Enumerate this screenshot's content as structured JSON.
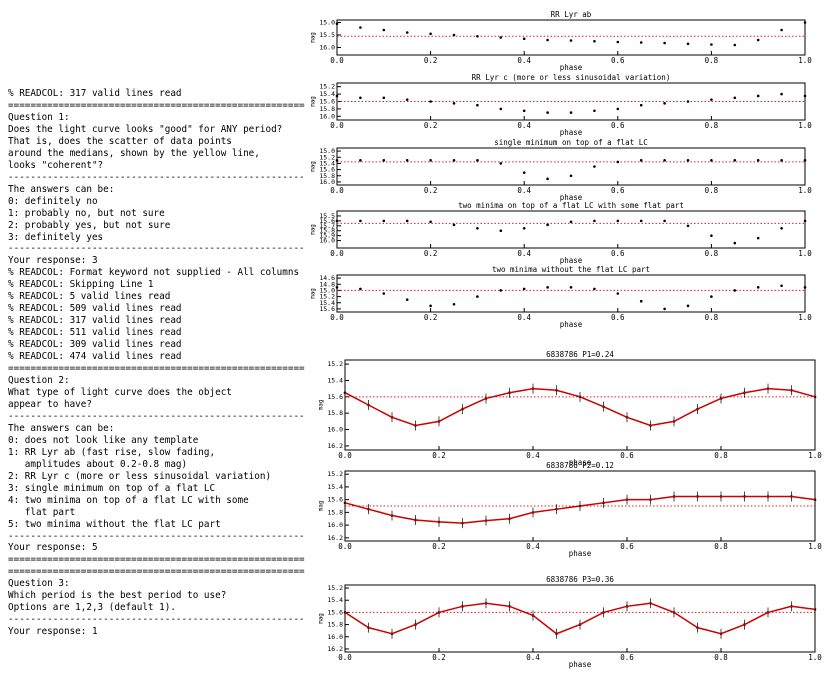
{
  "terminal": {
    "lines": [
      "% READCOL: 317 valid lines read",
      "=====================================================",
      "Question 1:",
      "Does the light curve looks \"good\" for ANY period?",
      "That is, does the scatter of data points",
      "around the medians, shown by the yellow line,",
      "looks \"coherent\"?",
      "-----------------------------------------------------",
      "The answers can be:",
      "0: definitely no",
      "1: probably no, but not sure",
      "2: probably yes, but not sure",
      "3: definitely yes",
      "-----------------------------------------------------",
      "Your response: 3",
      "% READCOL: Format keyword not supplied - All columns",
      "% READCOL: Skipping Line 1",
      "% READCOL: 5 valid lines read",
      "% READCOL: 509 valid lines read",
      "% READCOL: 317 valid lines read",
      "% READCOL: 511 valid lines read",
      "% READCOL: 309 valid lines read",
      "% READCOL: 474 valid lines read",
      "=====================================================",
      "Question 2:",
      "What type of light curve does the object",
      "appear to have?",
      "-----------------------------------------------------",
      "The answers can be:",
      "0: does not look like any template",
      "1: RR Lyr ab (fast rise, slow fading,",
      "   amplitudes about 0.2-0.8 mag)",
      "2: RR Lyr c (more or less sinusoidal variation)",
      "3: single minimum on top of a flat LC",
      "4: two minima on top of a flat LC with some",
      "   flat part",
      "5: two minima without the flat LC part",
      "-----------------------------------------------------",
      "Your response: 5",
      "=====================================================",
      "=====================================================",
      "Question 3:",
      "Which period is the best period to use?",
      "Options are 1,2,3 (default 1).",
      "-----------------------------------------------------",
      "Your response: 1"
    ]
  },
  "plots": [
    {
      "type": "scatter",
      "title": "RR Lyr ab",
      "xlabel": "phase",
      "ylabel": "mag",
      "color": "#000000",
      "median_color": "#e02020",
      "median": 15.55,
      "x": [
        0,
        0.05,
        0.1,
        0.15,
        0.2,
        0.25,
        0.3,
        0.35,
        0.4,
        0.45,
        0.5,
        0.55,
        0.6,
        0.65,
        0.7,
        0.75,
        0.8,
        0.85,
        0.9,
        0.95,
        1
      ],
      "values": [
        15.05,
        15.2,
        15.3,
        15.4,
        15.45,
        15.5,
        15.55,
        15.6,
        15.65,
        15.7,
        15.72,
        15.75,
        15.78,
        15.8,
        15.82,
        15.85,
        15.88,
        15.9,
        15.7,
        15.3,
        15.0
      ],
      "xlim": [
        0,
        1
      ],
      "xticks": [
        {
          "value": 0,
          "label": "0.0"
        },
        0.2,
        0.4,
        0.6,
        0.8,
        {
          "value": 1,
          "label": "1.0"
        }
      ],
      "ylim": [
        14.9,
        16.3
      ],
      "yticks": [
        {
          "value": 15,
          "label": "15.0"
        },
        15.5,
        {
          "value": 16,
          "label": "16.0"
        }
      ]
    },
    {
      "type": "scatter",
      "title": "RR Lyr c (more or less sinusoidal variation)",
      "xlabel": "phase",
      "ylabel": "mag",
      "color": "#000000",
      "median_color": "#e02020",
      "median": 15.6,
      "x": [
        0,
        0.05,
        0.1,
        0.15,
        0.2,
        0.25,
        0.3,
        0.35,
        0.4,
        0.45,
        0.5,
        0.55,
        0.6,
        0.65,
        0.7,
        0.75,
        0.8,
        0.85,
        0.9,
        0.95,
        1
      ],
      "values": [
        15.45,
        15.5,
        15.5,
        15.55,
        15.6,
        15.65,
        15.7,
        15.8,
        15.85,
        15.9,
        15.9,
        15.85,
        15.8,
        15.7,
        15.65,
        15.6,
        15.55,
        15.5,
        15.45,
        15.4,
        15.45
      ],
      "xlim": [
        0,
        1
      ],
      "xticks": [
        {
          "value": 0,
          "label": "0.0"
        },
        0.2,
        0.4,
        0.6,
        0.8,
        {
          "value": 1,
          "label": "1.0"
        }
      ],
      "ylim": [
        15.1,
        16.1
      ],
      "yticks": [
        15.2,
        15.4,
        15.6,
        15.8,
        {
          "value": 16,
          "label": "16.0"
        }
      ]
    },
    {
      "type": "scatter",
      "title": "single minimum on top of a flat LC",
      "xlabel": "phase",
      "ylabel": "mag",
      "color": "#000000",
      "median_color": "#e02020",
      "median": 15.35,
      "x": [
        0,
        0.05,
        0.1,
        0.15,
        0.2,
        0.25,
        0.3,
        0.35,
        0.4,
        0.45,
        0.5,
        0.55,
        0.6,
        0.65,
        0.7,
        0.75,
        0.8,
        0.85,
        0.9,
        0.95,
        1
      ],
      "values": [
        15.3,
        15.3,
        15.3,
        15.3,
        15.3,
        15.3,
        15.3,
        15.4,
        15.7,
        15.9,
        15.8,
        15.5,
        15.35,
        15.3,
        15.3,
        15.3,
        15.3,
        15.3,
        15.3,
        15.3,
        15.3
      ],
      "xlim": [
        0,
        1
      ],
      "xticks": [
        {
          "value": 0,
          "label": "0.0"
        },
        0.2,
        0.4,
        0.6,
        0.8,
        {
          "value": 1,
          "label": "1.0"
        }
      ],
      "ylim": [
        14.9,
        16.1
      ],
      "yticks": [
        {
          "value": 15,
          "label": "15.0"
        },
        15.2,
        15.4,
        15.6,
        15.8,
        {
          "value": 16,
          "label": "16.0"
        }
      ]
    },
    {
      "type": "scatter",
      "title": "two minima on top of a flat LC with some flat part",
      "xlabel": "phase",
      "ylabel": "mag",
      "color": "#000000",
      "median_color": "#e02020",
      "median": 15.65,
      "x": [
        0,
        0.05,
        0.1,
        0.15,
        0.2,
        0.25,
        0.3,
        0.35,
        0.4,
        0.45,
        0.5,
        0.55,
        0.6,
        0.65,
        0.7,
        0.75,
        0.8,
        0.85,
        0.9,
        0.95,
        1
      ],
      "values": [
        15.6,
        15.6,
        15.6,
        15.6,
        15.62,
        15.68,
        15.75,
        15.8,
        15.75,
        15.68,
        15.62,
        15.6,
        15.6,
        15.6,
        15.6,
        15.7,
        15.9,
        16.05,
        15.95,
        15.75,
        15.6
      ],
      "xlim": [
        0,
        1
      ],
      "xticks": [
        {
          "value": 0,
          "label": "0.0"
        },
        0.2,
        0.4,
        0.6,
        0.8,
        {
          "value": 1,
          "label": "1.0"
        }
      ],
      "ylim": [
        15.4,
        16.15
      ],
      "yticks": [
        15.5,
        15.6,
        15.7,
        15.8,
        15.9,
        {
          "value": 16,
          "label": "16.0"
        }
      ]
    },
    {
      "type": "scatter",
      "title": "two minima without the flat LC part",
      "xlabel": "phase",
      "ylabel": "mag",
      "color": "#000000",
      "median_color": "#e02020",
      "median": 15.0,
      "x": [
        0,
        0.05,
        0.1,
        0.15,
        0.2,
        0.25,
        0.3,
        0.35,
        0.4,
        0.45,
        0.5,
        0.55,
        0.6,
        0.65,
        0.7,
        0.75,
        0.8,
        0.85,
        0.9,
        0.95,
        1
      ],
      "values": [
        14.9,
        14.95,
        15.1,
        15.3,
        15.5,
        15.45,
        15.2,
        15.0,
        14.95,
        14.9,
        14.9,
        14.95,
        15.1,
        15.35,
        15.6,
        15.5,
        15.2,
        15.0,
        14.9,
        14.85,
        14.9
      ],
      "xlim": [
        0,
        1
      ],
      "xticks": [
        {
          "value": 0,
          "label": "0.0"
        },
        0.2,
        0.4,
        0.6,
        0.8,
        {
          "value": 1,
          "label": "1.0"
        }
      ],
      "ylim": [
        14.5,
        15.7
      ],
      "yticks": [
        14.6,
        14.8,
        {
          "value": 15,
          "label": "15.0"
        },
        15.2,
        15.4,
        15.6
      ]
    },
    {
      "type": "fit",
      "title": "6838786 P1=0.24",
      "xlabel": "phase",
      "ylabel": "mag",
      "color": "#000000",
      "fit_color": "#cc0000",
      "median_color": "#e02020",
      "median": 15.6,
      "x": [
        0,
        0.05,
        0.1,
        0.15,
        0.2,
        0.25,
        0.3,
        0.35,
        0.4,
        0.45,
        0.5,
        0.55,
        0.6,
        0.65,
        0.7,
        0.75,
        0.8,
        0.85,
        0.9,
        0.95,
        1
      ],
      "values": [
        15.55,
        15.7,
        15.85,
        15.95,
        15.9,
        15.75,
        15.62,
        15.55,
        15.5,
        15.52,
        15.6,
        15.72,
        15.85,
        15.95,
        15.9,
        15.75,
        15.62,
        15.55,
        15.5,
        15.52,
        15.6
      ],
      "xlim": [
        0,
        1
      ],
      "xticks": [
        {
          "value": 0,
          "label": "0.0"
        },
        0.2,
        0.4,
        0.6,
        0.8,
        {
          "value": 1,
          "label": "1.0"
        }
      ],
      "ylim": [
        15.15,
        16.25
      ],
      "yticks": [
        15.2,
        15.4,
        15.6,
        15.8,
        {
          "value": 16,
          "label": "16.0"
        },
        16.2
      ]
    },
    {
      "type": "fit",
      "title": "6838786 P2=0.12",
      "xlabel": "phase",
      "ylabel": "mag",
      "color": "#000000",
      "fit_color": "#cc0000",
      "median_color": "#e02020",
      "median": 15.7,
      "x": [
        0,
        0.05,
        0.1,
        0.15,
        0.2,
        0.25,
        0.3,
        0.35,
        0.4,
        0.45,
        0.5,
        0.55,
        0.6,
        0.65,
        0.7,
        0.75,
        0.8,
        0.85,
        0.9,
        0.95,
        1
      ],
      "values": [
        15.65,
        15.75,
        15.85,
        15.92,
        15.95,
        15.97,
        15.93,
        15.9,
        15.8,
        15.75,
        15.7,
        15.65,
        15.6,
        15.6,
        15.55,
        15.55,
        15.55,
        15.55,
        15.55,
        15.55,
        15.6
      ],
      "xlim": [
        0,
        1
      ],
      "xticks": [
        {
          "value": 0,
          "label": "0.0"
        },
        0.2,
        0.4,
        0.6,
        0.8,
        {
          "value": 1,
          "label": "1.0"
        }
      ],
      "ylim": [
        15.15,
        16.25
      ],
      "yticks": [
        15.2,
        15.4,
        15.6,
        15.8,
        {
          "value": 16,
          "label": "16.0"
        },
        16.2
      ]
    },
    {
      "type": "fit",
      "title": "6838786 P3=0.36",
      "xlabel": "phase",
      "ylabel": "mag",
      "color": "#000000",
      "fit_color": "#cc0000",
      "median_color": "#e02020",
      "median": 15.6,
      "x": [
        0,
        0.05,
        0.1,
        0.15,
        0.2,
        0.25,
        0.3,
        0.35,
        0.4,
        0.45,
        0.5,
        0.55,
        0.6,
        0.65,
        0.7,
        0.75,
        0.8,
        0.85,
        0.9,
        0.95,
        1
      ],
      "values": [
        15.6,
        15.85,
        15.95,
        15.8,
        15.6,
        15.5,
        15.45,
        15.5,
        15.65,
        15.95,
        15.8,
        15.6,
        15.5,
        15.45,
        15.6,
        15.85,
        15.95,
        15.8,
        15.6,
        15.5,
        15.55
      ],
      "xlim": [
        0,
        1
      ],
      "xticks": [
        {
          "value": 0,
          "label": "0.0"
        },
        0.2,
        0.4,
        0.6,
        0.8,
        {
          "value": 1,
          "label": "1.0"
        }
      ],
      "ylim": [
        15.15,
        16.25
      ],
      "yticks": [
        15.2,
        15.4,
        15.6,
        15.8,
        {
          "value": 16,
          "label": "16.0"
        },
        16.2
      ]
    }
  ]
}
